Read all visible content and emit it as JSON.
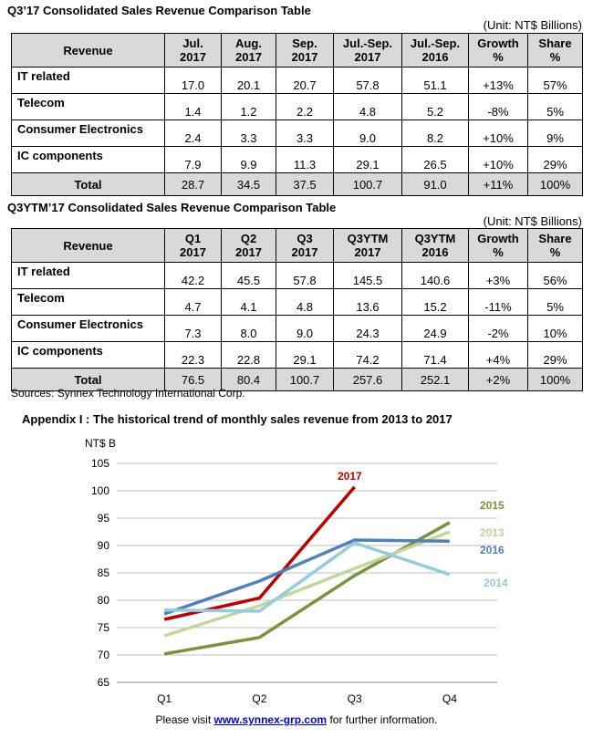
{
  "tables": [
    {
      "title": "Q3’17 Consolidated  Sales  Revenue  Comparison  Table",
      "unit": "(Unit: NT$ Billions)",
      "header": [
        [
          "Revenue"
        ],
        [
          "Jul.",
          "2017"
        ],
        [
          "Aug.",
          "2017"
        ],
        [
          "Sep.",
          "2017"
        ],
        [
          "Jul.-Sep.",
          "2017"
        ],
        [
          "Jul.-Sep.",
          "2016"
        ],
        [
          "Growth",
          "%"
        ],
        [
          "Share",
          "%"
        ]
      ],
      "rows": [
        [
          "IT related",
          "17.0",
          "20.1",
          "20.7",
          "57.8",
          "51.1",
          "+13%",
          "57%"
        ],
        [
          "Telecom",
          "1.4",
          "1.2",
          "2.2",
          "4.8",
          "5.2",
          "-8%",
          "5%"
        ],
        [
          "Consumer Electronics",
          "2.4",
          "3.3",
          "3.3",
          "9.0",
          "8.2",
          "+10%",
          "9%"
        ],
        [
          "IC components",
          "7.9",
          "9.9",
          "11.3",
          "29.1",
          "26.5",
          "+10%",
          "29%"
        ]
      ],
      "total": [
        "Total",
        "28.7",
        "34.5",
        "37.5",
        "100.7",
        "91.0",
        "+11%",
        "100%"
      ]
    },
    {
      "title": "Q3YTM’17 Consolidated  Sales  Revenue  Comparison  Table",
      "unit": "(Unit: NT$ Billions)",
      "header": [
        [
          "Revenue"
        ],
        [
          "Q1",
          "2017"
        ],
        [
          "Q2",
          "2017"
        ],
        [
          "Q3",
          "2017"
        ],
        [
          "Q3YTM",
          "2017"
        ],
        [
          "Q3YTM",
          "2016"
        ],
        [
          "Growth",
          "%"
        ],
        [
          "Share",
          "%"
        ]
      ],
      "rows": [
        [
          "IT related",
          "42.2",
          "45.5",
          "57.8",
          "145.5",
          "140.6",
          "+3%",
          "56%"
        ],
        [
          "Telecom",
          "4.7",
          "4.1",
          "4.8",
          "13.6",
          "15.2",
          "-11%",
          "5%"
        ],
        [
          "Consumer Electronics",
          "7.3",
          "8.0",
          "9.0",
          "24.3",
          "24.9",
          "-2%",
          "10%"
        ],
        [
          "IC components",
          "22.3",
          "22.8",
          "29.1",
          "74.2",
          "71.4",
          "+4%",
          "29%"
        ]
      ],
      "total": [
        "Total",
        "76.5",
        "80.4",
        "100.7",
        "257.6",
        "252.1",
        "+2%",
        "100%"
      ]
    }
  ],
  "sources": "Sources: Synnex Technology International Corp.",
  "chart_data": {
    "type": "line",
    "title": "Appendix I : The historical trend of monthly sales revenue from 2013 to 2017",
    "y_label": "NT$ B",
    "categories": [
      "Q1",
      "Q2",
      "Q3",
      "Q4"
    ],
    "ylim": [
      65,
      105
    ],
    "yticks": [
      65,
      70,
      75,
      80,
      85,
      90,
      95,
      100,
      105
    ],
    "grid": true,
    "series": [
      {
        "name": "2017",
        "color": "#c00000",
        "values": [
          76.5,
          80.4,
          100.7,
          null
        ]
      },
      {
        "name": "2015",
        "color": "#77933c",
        "values": [
          70.2,
          73.2,
          84.5,
          94.2
        ]
      },
      {
        "name": "2013",
        "color": "#c3d69b",
        "values": [
          73.5,
          79.0,
          85.8,
          92.5
        ]
      },
      {
        "name": "2016",
        "color": "#4f81bd",
        "values": [
          77.5,
          83.5,
          91.0,
          90.8
        ]
      },
      {
        "name": "2014",
        "color": "#93cddd",
        "values": [
          78.2,
          78.0,
          90.5,
          84.7
        ]
      }
    ]
  },
  "footer": {
    "before": "Please visit ",
    "link": "www.synnex-grp.com",
    "after": " for further information."
  }
}
